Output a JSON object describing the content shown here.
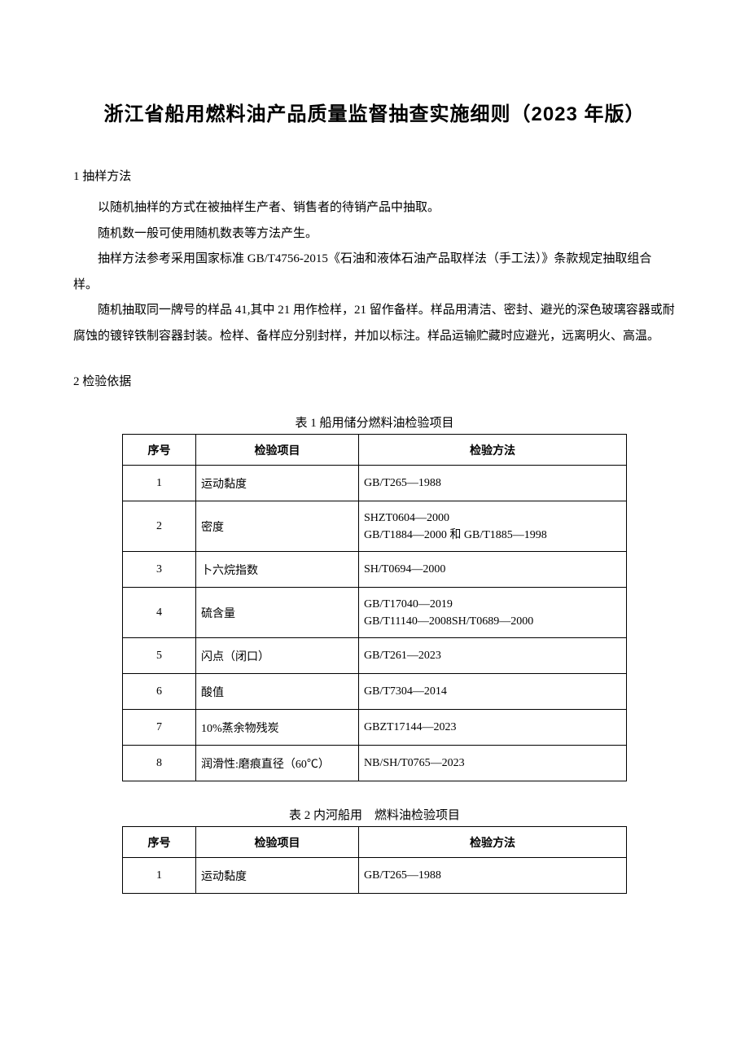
{
  "title": "浙江省船用燃料油产品质量监督抽查实施细则（2023 年版）",
  "section1": {
    "heading": "1 抽样方法",
    "p1": "以随机抽样的方式在被抽样生产者、销售者的待销产品中抽取。",
    "p2": "随机数一般可使用随机数表等方法产生。",
    "p3": "抽样方法参考采用国家标准 GB/T4756-2015《石油和液体石油产品取样法（手工法）》条款规定抽取组合样。",
    "p4": "随机抽取同一牌号的样品 41,其中 21 用作检样，21 留作备样。样品用清洁、密封、避光的深色玻璃容器或耐腐蚀的镀锌铁制容器封装。检样、备样应分别封样，并加以标注。样品运输贮藏时应避光，远离明火、高温。"
  },
  "section2": {
    "heading": "2 检验依据"
  },
  "table1": {
    "caption": "表 1 船用储分燃料油检验项目",
    "headers": {
      "seq": "序号",
      "item": "检验项目",
      "method": "检验方法"
    },
    "rows": [
      {
        "seq": "1",
        "item": "运动黏度",
        "method": "GB/T265—1988"
      },
      {
        "seq": "2",
        "item": "密度",
        "method": "SHZT0604—2000\nGB/T1884—2000 和 GB/T1885—1998"
      },
      {
        "seq": "3",
        "item": "卜六烷指数",
        "method": "SH/T0694—2000"
      },
      {
        "seq": "4",
        "item": "硫含量",
        "method": "GB/T17040—2019\nGB/T11140—2008SH/T0689—2000"
      },
      {
        "seq": "5",
        "item": "闪点（闭口）",
        "method": "GB/T261—2023"
      },
      {
        "seq": "6",
        "item": "酸值",
        "method": "GB/T7304—2014"
      },
      {
        "seq": "7",
        "item": "10%蒸余物残炭",
        "method": "GBZT17144—2023"
      },
      {
        "seq": "8",
        "item": "润滑性:磨痕直径（60℃）",
        "method": "NB/SH/T0765—2023"
      }
    ]
  },
  "table2": {
    "caption": "表 2 内河船用　燃料油检验项目",
    "headers": {
      "seq": "序号",
      "item": "检验项目",
      "method": "检验方法"
    },
    "rows": [
      {
        "seq": "1",
        "item": "运动黏度",
        "method": "GB/T265—1988"
      }
    ]
  }
}
